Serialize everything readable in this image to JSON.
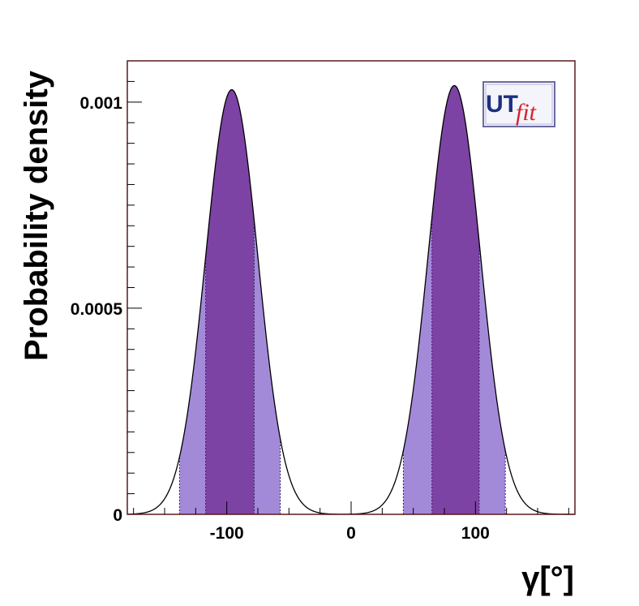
{
  "chart_data": {
    "type": "area",
    "title": "",
    "xlabel": "γ[°]",
    "ylabel": "Probability density",
    "xlim": [
      -180,
      180
    ],
    "ylim": [
      0,
      0.0011
    ],
    "x_ticks": [
      {
        "value": -100,
        "label": "-100"
      },
      {
        "value": 0,
        "label": "0"
      },
      {
        "value": 100,
        "label": "100"
      }
    ],
    "y_ticks": [
      {
        "value": 0,
        "label": "0"
      },
      {
        "value": 0.0005,
        "label": "0.0005"
      },
      {
        "value": 0.001,
        "label": "0.001"
      }
    ],
    "peaks": [
      {
        "center": -96,
        "height": 0.00103,
        "sigma": 21,
        "region_68": [
          -117,
          -78
        ],
        "region_95": [
          -138,
          -57
        ]
      },
      {
        "center": 83,
        "height": 0.00104,
        "sigma": 21,
        "region_68": [
          65,
          103
        ],
        "region_95": [
          42,
          124
        ]
      }
    ],
    "colors": {
      "region_68": "#7d43a4",
      "region_95": "#a38ad9",
      "curve": "#000000",
      "frame": "#5a1a1a"
    },
    "grid": false,
    "legend": "none"
  },
  "logo": {
    "text_main": "UT",
    "text_sub": "fit",
    "colors": {
      "main": "#1c2e7e",
      "sub": "#d8202a",
      "border": "#6a6aa0"
    }
  }
}
